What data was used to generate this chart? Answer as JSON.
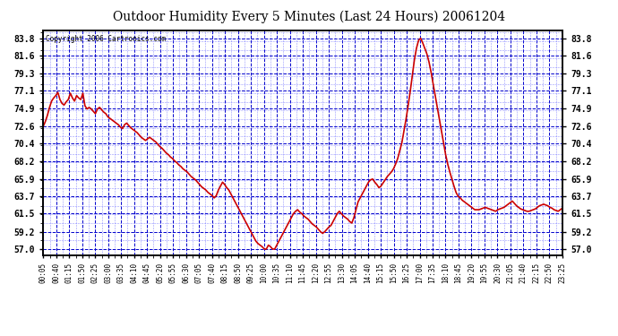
{
  "title": "Outdoor Humidity Every 5 Minutes (Last 24 Hours) 20061204",
  "copyright": "Copyright 2006 Cartronics.com",
  "background_color": "#ffffff",
  "line_color": "#cc0000",
  "grid_major_color": "#0000cc",
  "grid_minor_color": "#6666ff",
  "title_color": "#000000",
  "yticks": [
    57.0,
    59.2,
    61.5,
    63.7,
    65.9,
    68.2,
    70.4,
    72.6,
    74.9,
    77.1,
    79.3,
    81.6,
    83.8
  ],
  "ylim": [
    56.2,
    84.8
  ],
  "xtick_labels": [
    "00:05",
    "00:40",
    "01:15",
    "01:50",
    "02:25",
    "03:00",
    "03:35",
    "04:10",
    "04:45",
    "05:20",
    "05:55",
    "06:30",
    "07:05",
    "07:40",
    "08:15",
    "08:50",
    "09:25",
    "10:00",
    "10:35",
    "11:10",
    "11:45",
    "12:20",
    "12:55",
    "13:30",
    "14:05",
    "14:40",
    "15:15",
    "15:50",
    "16:25",
    "17:00",
    "17:35",
    "18:10",
    "18:45",
    "19:20",
    "19:55",
    "20:30",
    "21:05",
    "21:40",
    "22:15",
    "22:50",
    "23:25"
  ],
  "humidity_values": [
    72.6,
    73.2,
    74.0,
    75.0,
    75.8,
    76.2,
    76.5,
    76.9,
    76.0,
    75.5,
    75.3,
    75.7,
    76.0,
    76.8,
    76.2,
    75.8,
    76.5,
    76.2,
    76.0,
    76.8,
    75.2,
    74.8,
    75.0,
    74.8,
    74.5,
    74.2,
    74.8,
    75.0,
    74.7,
    74.4,
    74.2,
    73.8,
    73.6,
    73.4,
    73.2,
    73.0,
    72.8,
    72.5,
    72.3,
    72.8,
    73.0,
    72.7,
    72.4,
    72.2,
    72.0,
    71.8,
    71.5,
    71.2,
    71.0,
    70.8,
    71.0,
    71.2,
    71.0,
    70.8,
    70.6,
    70.3,
    70.0,
    69.8,
    69.5,
    69.2,
    69.0,
    68.7,
    68.5,
    68.2,
    68.0,
    67.7,
    67.5,
    67.2,
    67.0,
    66.8,
    66.5,
    66.2,
    66.0,
    65.8,
    65.5,
    65.2,
    64.9,
    64.7,
    64.5,
    64.2,
    64.0,
    63.8,
    63.5,
    63.8,
    64.5,
    65.0,
    65.5,
    65.2,
    64.8,
    64.5,
    64.0,
    63.5,
    63.0,
    62.5,
    62.0,
    61.5,
    61.0,
    60.5,
    60.0,
    59.5,
    59.0,
    58.5,
    58.0,
    57.7,
    57.5,
    57.3,
    57.0,
    57.0,
    57.5,
    57.3,
    57.0,
    57.0,
    57.5,
    58.0,
    58.5,
    59.0,
    59.5,
    60.0,
    60.5,
    61.0,
    61.5,
    61.8,
    62.0,
    61.7,
    61.5,
    61.2,
    61.0,
    60.8,
    60.5,
    60.2,
    60.0,
    59.8,
    59.5,
    59.2,
    59.0,
    59.2,
    59.5,
    59.8,
    60.0,
    60.5,
    61.0,
    61.5,
    61.8,
    61.5,
    61.2,
    61.0,
    60.8,
    60.5,
    60.3,
    61.0,
    62.0,
    63.0,
    63.5,
    64.0,
    64.5,
    65.0,
    65.5,
    65.8,
    65.9,
    65.5,
    65.2,
    64.8,
    65.0,
    65.4,
    65.8,
    66.2,
    66.5,
    66.8,
    67.2,
    67.8,
    68.5,
    69.5,
    70.5,
    72.0,
    73.5,
    75.2,
    77.0,
    79.0,
    81.0,
    82.5,
    83.5,
    83.8,
    83.2,
    82.5,
    81.8,
    80.8,
    79.5,
    78.0,
    76.5,
    75.0,
    73.5,
    72.0,
    70.5,
    69.0,
    67.8,
    66.8,
    65.9,
    65.0,
    64.2,
    63.7,
    63.5,
    63.2,
    63.0,
    62.8,
    62.6,
    62.4,
    62.2,
    62.0,
    62.0,
    62.0,
    62.1,
    62.2,
    62.3,
    62.2,
    62.1,
    62.0,
    61.9,
    61.8,
    62.0,
    62.1,
    62.2,
    62.3,
    62.5,
    62.7,
    62.9,
    63.1,
    62.8,
    62.5,
    62.3,
    62.1,
    62.0,
    61.9,
    61.8,
    61.8,
    61.9,
    62.0,
    62.1,
    62.3,
    62.5,
    62.6,
    62.7,
    62.6,
    62.5,
    62.3,
    62.2,
    62.0,
    61.9,
    61.8,
    62.0,
    62.2
  ]
}
